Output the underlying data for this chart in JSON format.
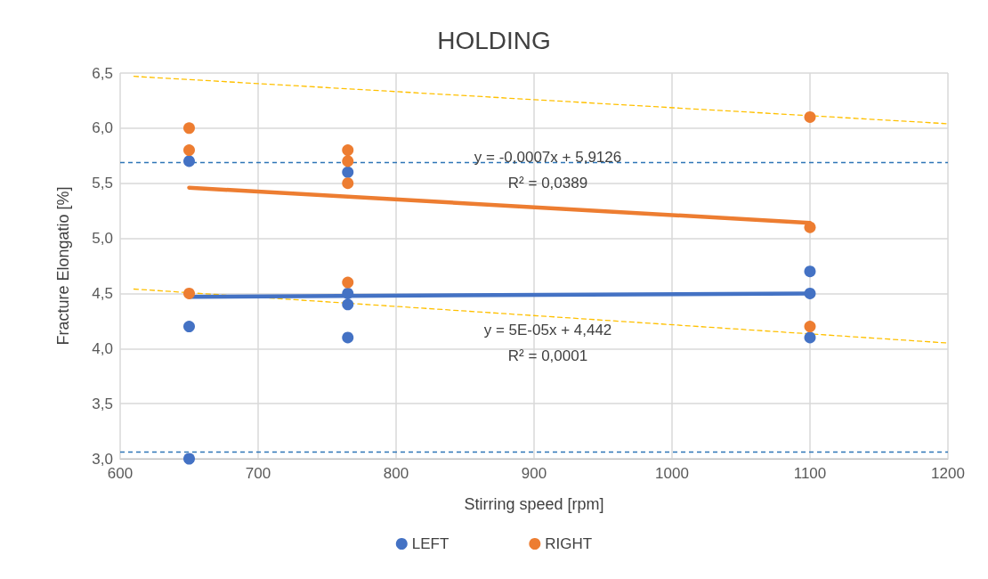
{
  "chart_data": {
    "type": "scatter",
    "title": "HOLDING",
    "xlabel": "Stirring speed [rpm]",
    "ylabel": "Fracture Elongatio [%]",
    "xlim": [
      600,
      1200
    ],
    "xticks": [
      600,
      700,
      800,
      900,
      1000,
      1100,
      1200
    ],
    "ylim": [
      3.0,
      6.5
    ],
    "yticks": [
      {
        "value": 3.0,
        "label": "3,0"
      },
      {
        "value": 3.5,
        "label": "3,5"
      },
      {
        "value": 4.0,
        "label": "4,0"
      },
      {
        "value": 4.5,
        "label": "4,5"
      },
      {
        "value": 5.0,
        "label": "5,0"
      },
      {
        "value": 5.5,
        "label": "5,5"
      },
      {
        "value": 6.0,
        "label": "6,0"
      },
      {
        "value": 6.5,
        "label": "6,5"
      }
    ],
    "grid": true,
    "legend": "bottom",
    "marker": "circle",
    "series": [
      {
        "type": "line",
        "color": "#ffc000",
        "marker": "none",
        "line_style": "dashed",
        "x": [
          610,
          1200
        ],
        "values": [
          6.47,
          6.04
        ]
      },
      {
        "type": "line",
        "color": "#ffc000",
        "marker": "none",
        "line_style": "dashed",
        "x": [
          610,
          1200
        ],
        "values": [
          4.54,
          4.05
        ]
      },
      {
        "type": "line",
        "color": "#ed7d31",
        "marker": "none",
        "line_style": "solid",
        "x": [
          650,
          1100
        ],
        "values": [
          5.46,
          5.14
        ]
      },
      {
        "type": "line",
        "color": "#4472c4",
        "marker": "none",
        "line_style": "solid",
        "x": [
          650,
          1100
        ],
        "values": [
          4.47,
          4.5
        ]
      },
      {
        "name": "LEFT",
        "color": "#4472c4",
        "x": [
          650,
          650,
          650,
          765,
          765,
          765,
          765,
          1100,
          1100,
          1100
        ],
        "values": [
          5.7,
          4.2,
          3.0,
          5.6,
          4.5,
          4.4,
          4.1,
          4.7,
          4.5,
          4.1
        ]
      },
      {
        "name": "RIGHT",
        "color": "#ed7d31",
        "x": [
          650,
          650,
          650,
          765,
          765,
          765,
          765,
          1100,
          1100,
          1100
        ],
        "values": [
          6.0,
          5.8,
          4.5,
          5.8,
          5.7,
          5.5,
          4.6,
          6.1,
          5.1,
          4.2
        ]
      }
    ],
    "ref_lines": [
      {
        "axis": "y",
        "value": 5.69,
        "color": "#2e75b6",
        "line_style": "dashed"
      },
      {
        "axis": "y",
        "value": 3.06,
        "color": "#2e75b6",
        "line_style": "dashed"
      }
    ],
    "annotations": [
      "y = -0,0007x + 5,9126",
      "R² = 0,0389",
      "y = 5E-05x + 4,442",
      "R² = 0,0001"
    ]
  }
}
